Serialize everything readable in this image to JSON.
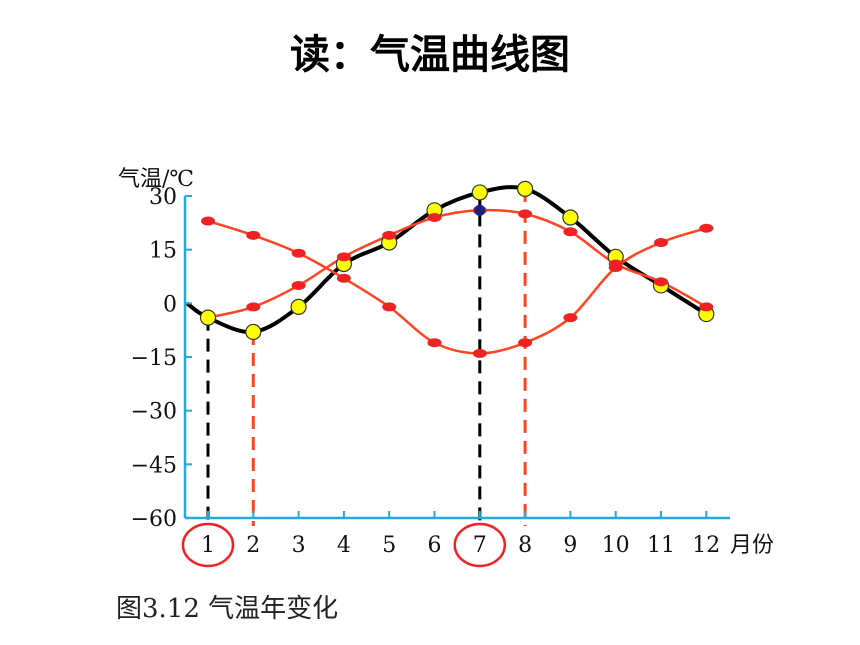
{
  "slide": {
    "title": "读：气温曲线图",
    "caption": "图3.12  气温年变化"
  },
  "chart_data": {
    "type": "line",
    "ylabel": "气温/℃",
    "xlabel": "月份",
    "ylim": [
      -60,
      30
    ],
    "yticks": [
      30,
      15,
      0,
      -15,
      -30,
      -45,
      -60
    ],
    "categories": [
      "1",
      "2",
      "3",
      "4",
      "5",
      "6",
      "7",
      "8",
      "9",
      "10",
      "11",
      "12"
    ],
    "series": [
      {
        "color": "#000000",
        "marker_color": "#ffff00",
        "markers_from": 1,
        "values": [
          -4,
          -8,
          -1,
          11,
          17,
          26,
          31,
          32,
          24,
          13,
          5,
          -3
        ]
      },
      {
        "color": "#ff4422",
        "marker_color": "#ee2222",
        "markers_from": 2,
        "values": [
          -4,
          -1,
          5,
          13,
          19,
          24,
          26,
          25,
          20,
          11,
          6,
          -1
        ]
      },
      {
        "color": "#ff4422",
        "marker_color": "#ee2222",
        "markers_from": 1,
        "values": [
          23,
          19,
          14,
          7,
          -1,
          -11,
          -14,
          -11,
          -4,
          10,
          17,
          21
        ]
      }
    ],
    "highlight": {
      "black_dashed_months": [
        "1",
        "7"
      ],
      "red_dashed_months": [
        "2",
        "8"
      ],
      "circled_months": [
        "1",
        "7"
      ]
    },
    "colors": {
      "axis": "#22aadd",
      "dash_black": "#000000",
      "dash_red": "#ff4422",
      "circle": "#ee2222"
    }
  }
}
